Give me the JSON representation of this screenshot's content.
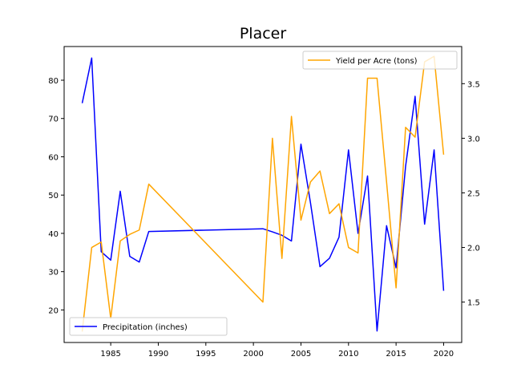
{
  "chart_data": {
    "type": "line",
    "title": "Placer",
    "xlabel": "",
    "ylabel_left": "",
    "ylabel_right": "",
    "xlim": [
      1980.1,
      2021.9
    ],
    "ylim_left": [
      11.5,
      88.8
    ],
    "ylim_right": [
      1.13,
      3.84
    ],
    "x_ticks": [
      1985,
      1990,
      1995,
      2000,
      2005,
      2010,
      2015,
      2020
    ],
    "y_left_ticks": [
      20,
      30,
      40,
      50,
      60,
      70,
      80
    ],
    "y_right_ticks": [
      1.5,
      2.0,
      2.5,
      3.0,
      3.5
    ],
    "grid": false,
    "series": [
      {
        "name": "Precipitation (inches)",
        "axis": "left",
        "color": "#0000ff",
        "x": [
          1982,
          1983,
          1984,
          1985,
          1986,
          1987,
          1988,
          1989,
          2001,
          2002,
          2003,
          2004,
          2005,
          2006,
          2007,
          2008,
          2009,
          2010,
          2011,
          2012,
          2013,
          2014,
          2015,
          2016,
          2017,
          2018,
          2019,
          2020
        ],
        "values": [
          74,
          85.8,
          35.2,
          33.0,
          51.0,
          34.0,
          32.5,
          40.5,
          41.2,
          40.4,
          39.5,
          38.0,
          63.3,
          48.0,
          31.3,
          33.5,
          39.0,
          61.8,
          40.0,
          55.0,
          14.5,
          42.0,
          31.0,
          57.5,
          75.8,
          42.4,
          61.8,
          25.0
        ]
      },
      {
        "name": "Yield per Acre (tons)",
        "axis": "right",
        "color": "#ffa500",
        "x": [
          1982,
          1983,
          1984,
          1985,
          1986,
          1987,
          1988,
          1989,
          2001,
          2002,
          2003,
          2004,
          2005,
          2006,
          2007,
          2008,
          2009,
          2010,
          2011,
          2012,
          2013,
          2014,
          2015,
          2016,
          2017,
          2018,
          2019,
          2020
        ],
        "values": [
          1.23,
          2.0,
          2.05,
          1.35,
          2.06,
          2.12,
          2.16,
          2.58,
          1.5,
          3.0,
          1.9,
          3.2,
          2.25,
          2.6,
          2.7,
          2.31,
          2.4,
          2.0,
          1.95,
          3.55,
          3.55,
          2.6,
          1.63,
          3.1,
          3.01,
          3.7,
          3.75,
          2.85
        ]
      }
    ],
    "legends": [
      {
        "series": 0,
        "placement": "lower left"
      },
      {
        "series": 1,
        "placement": "upper right"
      }
    ]
  }
}
